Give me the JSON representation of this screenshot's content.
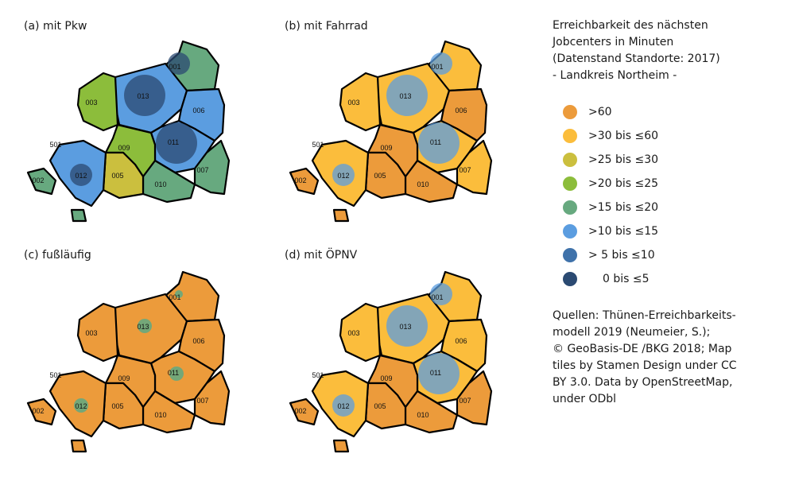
{
  "panels": [
    {
      "title": "(a) mit Pkw",
      "fills": {
        "001": 4,
        "013": 5,
        "003": 3,
        "006": 5,
        "011": 5,
        "007": 4,
        "010": 4,
        "009": 3,
        "005": 2,
        "012": 5,
        "002": 4,
        "isl": 4
      },
      "center": 7
    },
    {
      "title": "(b) mit Fahrrad",
      "fills": {
        "001": 1,
        "013": 1,
        "003": 1,
        "006": 0,
        "011": 1,
        "007": 1,
        "010": 0,
        "009": 0,
        "005": 0,
        "012": 1,
        "002": 0,
        "isl": 0
      },
      "center": 5
    },
    {
      "title": "(c) fußläufig",
      "fills": {
        "001": 0,
        "013": 0,
        "003": 0,
        "006": 0,
        "011": 0,
        "007": 0,
        "010": 0,
        "009": 0,
        "005": 0,
        "012": 0,
        "002": 0,
        "isl": 0
      },
      "center": 4
    },
    {
      "title": "(d) mit ÖPNV",
      "fills": {
        "001": 1,
        "013": 1,
        "003": 1,
        "006": 1,
        "011": 1,
        "007": 0,
        "010": 0,
        "009": 0,
        "005": 0,
        "012": 1,
        "002": 0,
        "isl": 0
      },
      "center": 5
    }
  ],
  "region_labels": [
    "001",
    "013",
    "003",
    "006",
    "011",
    "007",
    "010",
    "009",
    "005",
    "012",
    "002",
    "501"
  ],
  "legend": {
    "title_lines": [
      "Erreichbarkeit des nächsten",
      "Jobcenters in Minuten",
      "(Datenstand Standorte: 2017)",
      "- Landkreis Northeim -"
    ],
    "items": [
      {
        "label": ">60",
        "color": "#ec9b3b"
      },
      {
        "label": ">30 bis ≤60",
        "color": "#fbbd3c"
      },
      {
        "label": ">25 bis ≤30",
        "color": "#cbbf3e"
      },
      {
        "label": ">20 bis ≤25",
        "color": "#8cbd3b"
      },
      {
        "label": ">15 bis ≤20",
        "color": "#67a97f"
      },
      {
        "label": ">10 bis ≤15",
        "color": "#5b9de0"
      },
      {
        "label": ">  5 bis ≤10",
        "color": "#3f72aa"
      },
      {
        "label": "0 bis ≤5",
        "color": "#2b4a72"
      }
    ]
  },
  "sources": [
    "Quellen: Thünen-Erreichbarkeits-",
    "modell 2019 (Neumeier, S.);",
    "© GeoBasis-DE /BKG 2018; Map",
    "tiles by Stamen Design under CC",
    "BY 3.0. Data by OpenStreetMap,",
    "under ODbl"
  ]
}
